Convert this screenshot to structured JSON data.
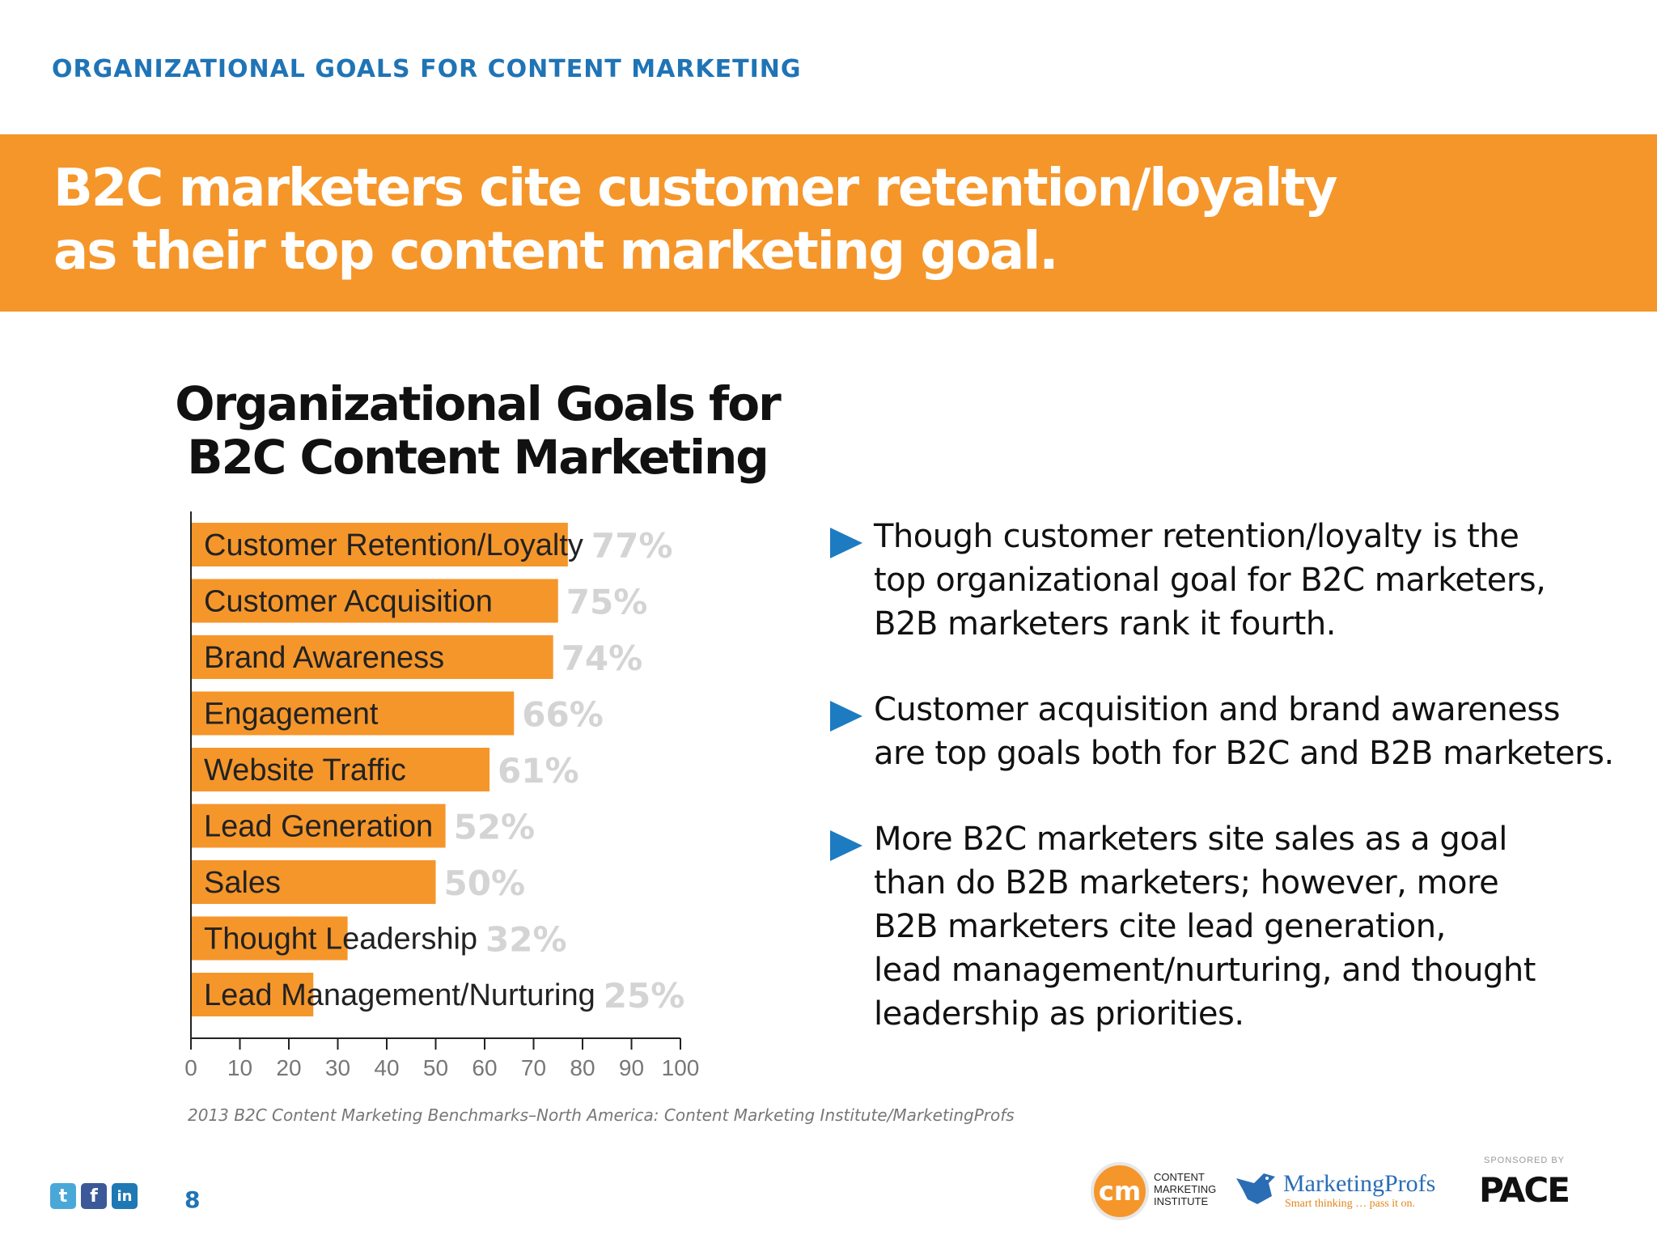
{
  "header": {
    "section_label": "ORGANIZATIONAL GOALS FOR CONTENT MARKETING",
    "headline_line1": "B2C marketers cite customer retention/loyalty",
    "headline_line2": "as their top content marketing goal."
  },
  "colors": {
    "bar": "#f5962b",
    "accent_blue": "#1f74b6",
    "value_label": "#d4d4d4"
  },
  "chart_data": {
    "type": "bar",
    "orientation": "horizontal",
    "title_line1": "Organizational Goals for",
    "title_line2": "B2C Content Marketing",
    "categories": [
      "Customer Retention/Loyalty",
      "Customer Acquisition",
      "Brand Awareness",
      "Engagement",
      "Website Traffic",
      "Lead Generation",
      "Sales",
      "Thought Leadership",
      "Lead Management/Nurturing"
    ],
    "values": [
      77,
      75,
      74,
      66,
      61,
      52,
      50,
      32,
      25
    ],
    "value_labels": [
      "77%",
      "75%",
      "74%",
      "66%",
      "61%",
      "52%",
      "50%",
      "32%",
      "25%"
    ],
    "xlim": [
      0,
      100
    ],
    "xticks": [
      0,
      10,
      20,
      30,
      40,
      50,
      60,
      70,
      80,
      90,
      100
    ],
    "grid": false,
    "source": "2013 B2C Content Marketing Benchmarks–North America: Content Marketing Institute/MarketingProfs"
  },
  "bullets": [
    "Though customer retention/loyalty is the\ntop organizational goal for B2C marketers,\nB2B marketers rank it fourth.",
    "Customer acquisition and brand awareness\nare top goals both for B2C and B2B marketers.",
    "More B2C marketers site sales as a goal\nthan do B2B marketers; however, more\nB2B marketers cite lead generation,\nlead management/nurturing, and thought\nleadership as priorities."
  ],
  "footer": {
    "page_number": "8",
    "social_icons": [
      "twitter-icon",
      "facebook-icon",
      "linkedin-icon"
    ],
    "cmi_logo_mark": "cm",
    "cmi_text": "CONTENT\nMARKETING\nINSTITUTE",
    "mp_name": "MarketingProfs",
    "mp_tagline": "Smart thinking … pass it on.",
    "sponsor_label": "SPONSORED BY",
    "sponsor_name": "PACE"
  }
}
